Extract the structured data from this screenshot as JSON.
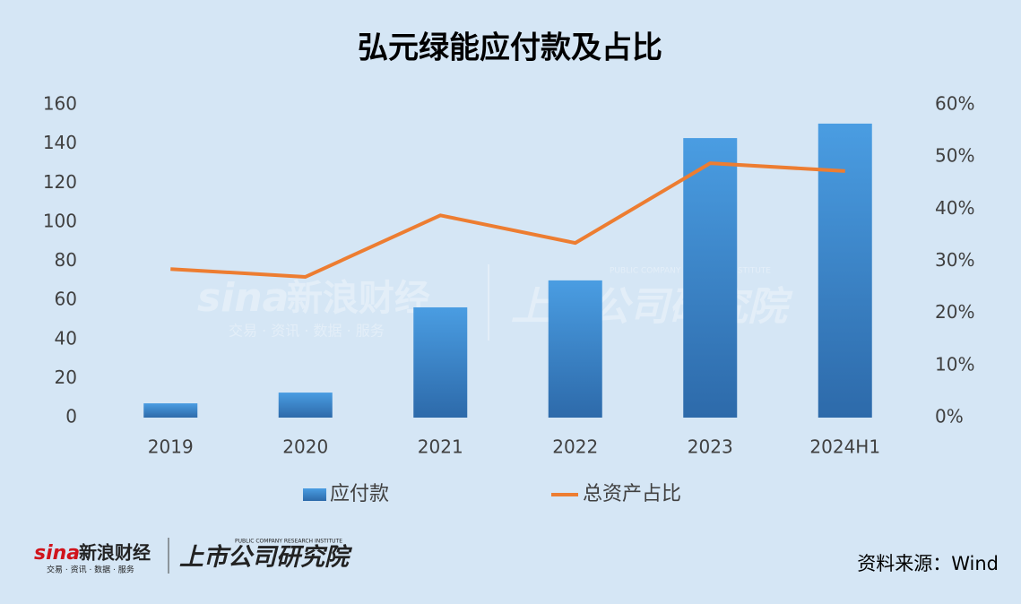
{
  "chart_data": {
    "type": "bar",
    "title": "弘元绿能应付款及占比",
    "categories": [
      "2019",
      "2020",
      "2021",
      "2022",
      "2023",
      "2024H1"
    ],
    "series": [
      {
        "name": "应付款",
        "color": "#3a86d0",
        "values": [
          7.3,
          12.8,
          56.4,
          70.2,
          143,
          150.4
        ]
      },
      {
        "name": "总资产占比",
        "color": "#ed7d31",
        "axis": "y2",
        "values": [
          28.5,
          27,
          38.8,
          33.5,
          48.8,
          47.3
        ]
      }
    ],
    "ylim": [
      0,
      160
    ],
    "yticks": [
      0,
      20,
      40,
      60,
      80,
      100,
      120,
      140,
      160
    ],
    "y2lim": [
      0,
      60
    ],
    "y2ticks": [
      {
        "value": 0,
        "label": "0%"
      },
      {
        "value": 10,
        "label": "10%"
      },
      {
        "value": 20,
        "label": "20%"
      },
      {
        "value": 30,
        "label": "30%"
      },
      {
        "value": 40,
        "label": "40%"
      },
      {
        "value": 50,
        "label": "50%"
      },
      {
        "value": 60,
        "label": "60%"
      }
    ],
    "legend": "bottom",
    "source": "资料来源：Wind"
  },
  "branding": {
    "sina": "sina",
    "sina_name": "新浪财经",
    "sina_tagline": "交易 · 资讯 · 数据 · 服务",
    "institute": "上市公司研究院",
    "institute_en": "PUBLIC COMPANY RESEARCH INSTITUTE"
  }
}
